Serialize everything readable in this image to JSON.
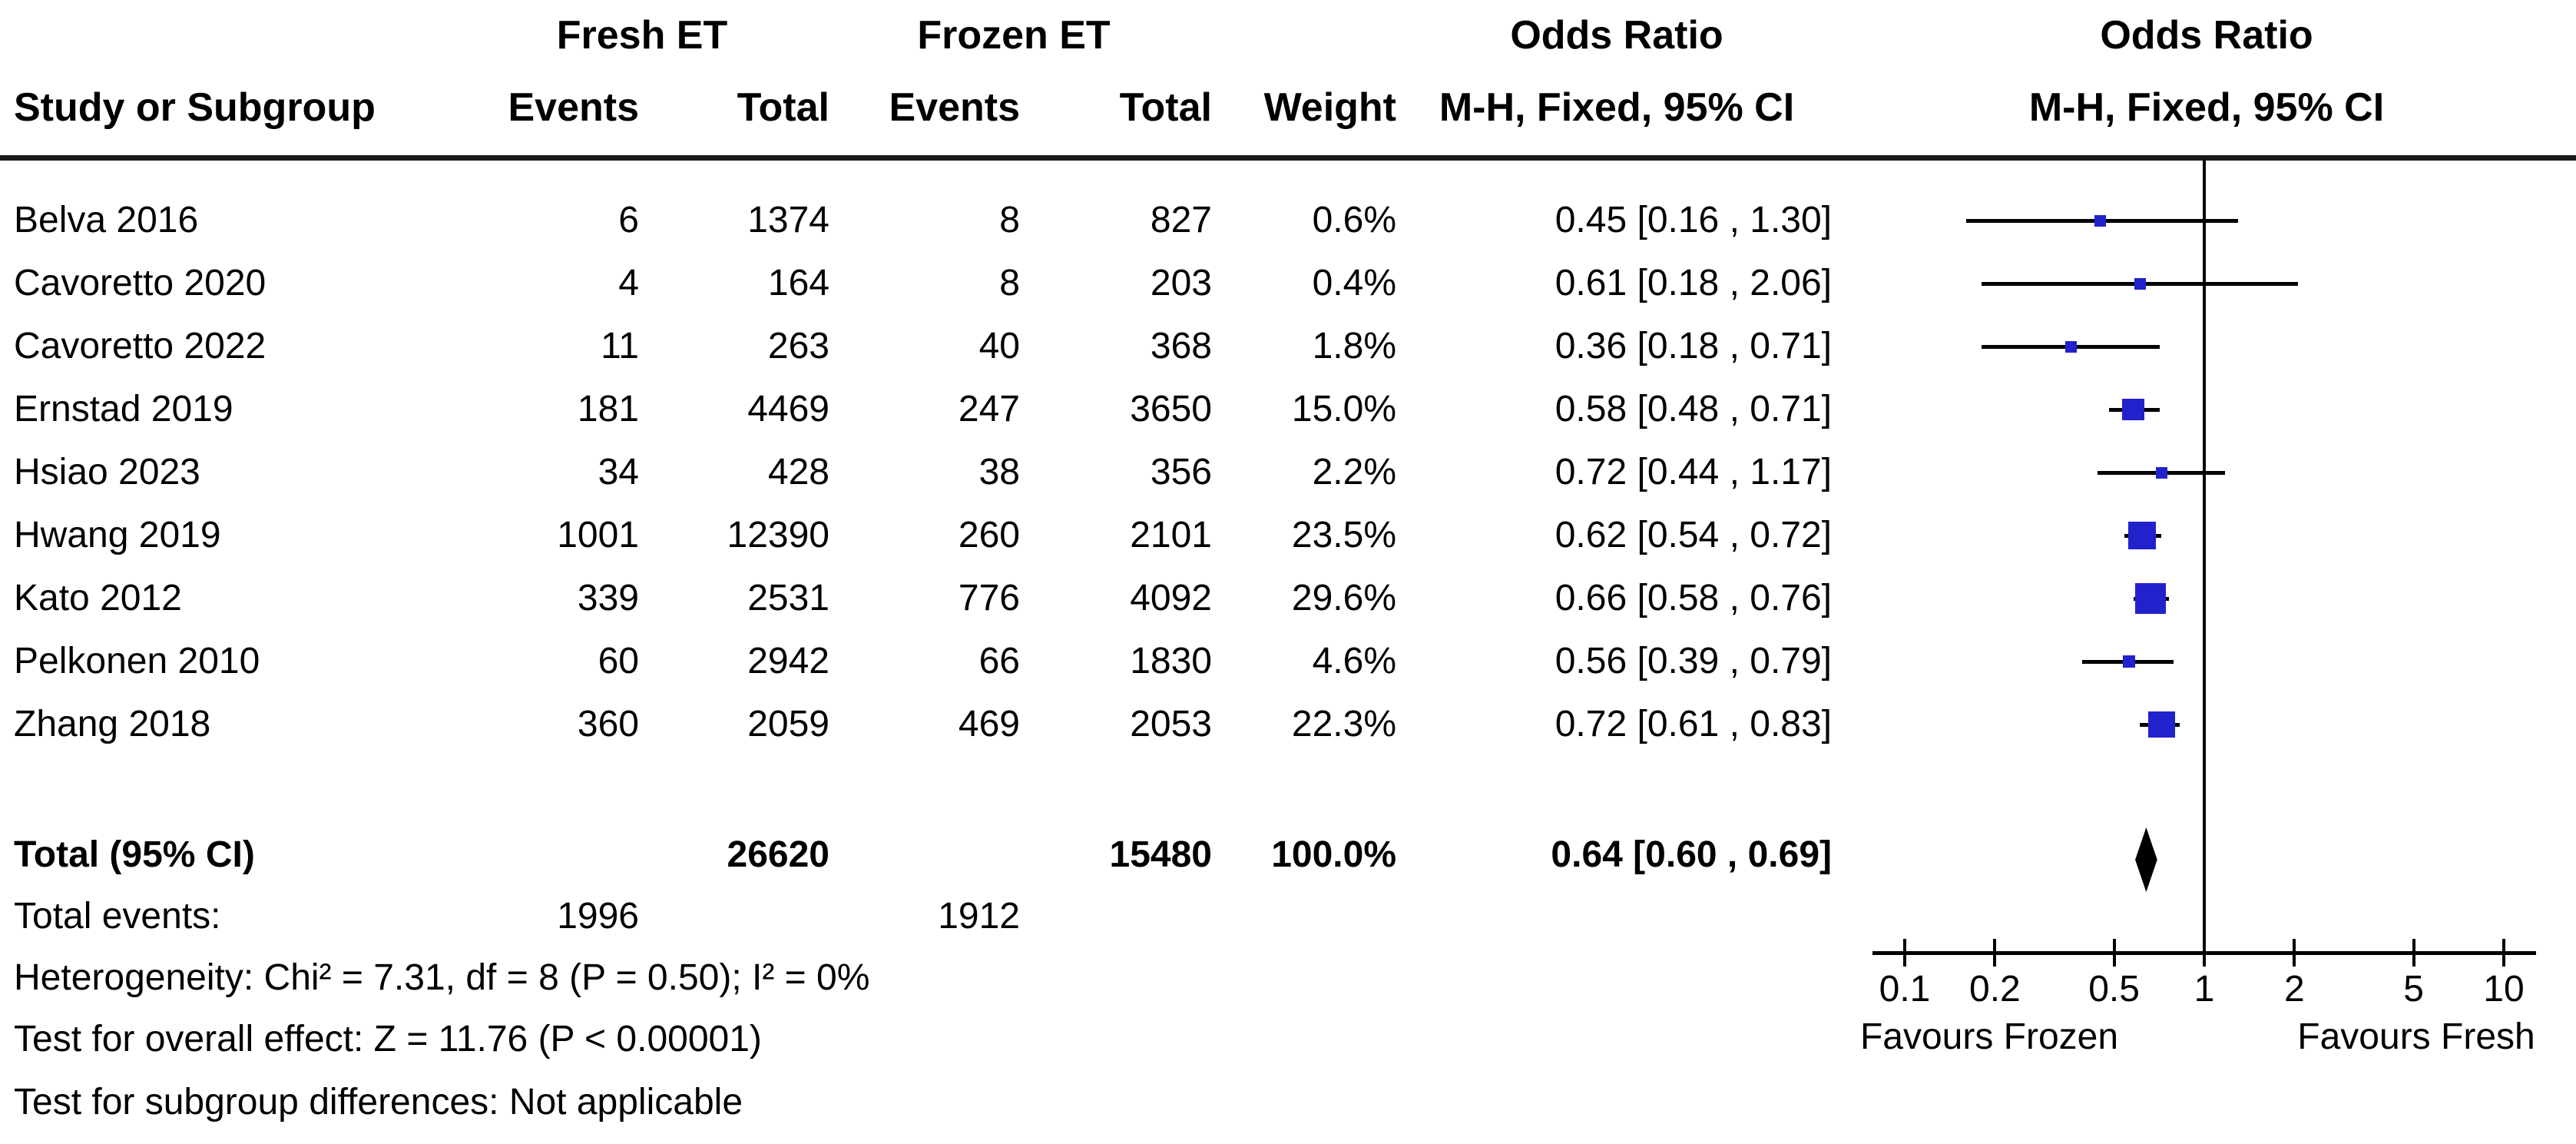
{
  "headers": {
    "group": {
      "fresh": "Fresh ET",
      "frozen": "Frozen ET",
      "or_stat": "Odds Ratio",
      "or_plot": "Odds Ratio"
    },
    "cols": {
      "study": "Study or Subgroup",
      "fresh_events": "Events",
      "fresh_total": "Total",
      "frozen_events": "Events",
      "frozen_total": "Total",
      "weight": "Weight",
      "mh_stat": "M-H, Fixed, 95% CI",
      "mh_plot": "M-H, Fixed, 95% CI"
    }
  },
  "labels": {
    "total_label": "Total (95% CI)",
    "total_events_label": "Total events:"
  },
  "footnotes": {
    "heterogeneity": "Heterogeneity: Chi² = 7.31, df = 8 (P = 0.50); I² = 0%",
    "overall_effect": "Test for overall effect: Z = 11.76 (P < 0.00001)",
    "subgroup_differences": "Test for subgroup differences: Not applicable"
  },
  "colors": {
    "marker_blue": "#2222CC",
    "ci_line": "#000000",
    "diamond": "#000000",
    "rule": "#1a1a1a"
  },
  "chart_data": {
    "type": "forest_plot",
    "effect_measure": "Odds Ratio, M-H, Fixed, 95% CI",
    "null_line": 1,
    "axis": {
      "scale": "log",
      "min": 0.1,
      "max": 10,
      "ticks": [
        0.1,
        0.2,
        0.5,
        1,
        2,
        5,
        10
      ],
      "tick_labels": [
        "0.1",
        "0.2",
        "0.5",
        "1",
        "2",
        "5",
        "10"
      ]
    },
    "favours": {
      "left": "Favours Frozen",
      "right": "Favours Fresh"
    },
    "studies": [
      {
        "name": "Belva 2016",
        "fresh_events": 6,
        "fresh_total": 1374,
        "frozen_events": 8,
        "frozen_total": 827,
        "weight_pct": 0.6,
        "weight_label": "0.6%",
        "or": 0.45,
        "ci_low": 0.16,
        "ci_high": 1.3,
        "or_label": "0.45 [0.16 , 1.30]"
      },
      {
        "name": "Cavoretto 2020",
        "fresh_events": 4,
        "fresh_total": 164,
        "frozen_events": 8,
        "frozen_total": 203,
        "weight_pct": 0.4,
        "weight_label": "0.4%",
        "or": 0.61,
        "ci_low": 0.18,
        "ci_high": 2.06,
        "or_label": "0.61 [0.18 , 2.06]"
      },
      {
        "name": "Cavoretto 2022",
        "fresh_events": 11,
        "fresh_total": 263,
        "frozen_events": 40,
        "frozen_total": 368,
        "weight_pct": 1.8,
        "weight_label": "1.8%",
        "or": 0.36,
        "ci_low": 0.18,
        "ci_high": 0.71,
        "or_label": "0.36 [0.18 , 0.71]"
      },
      {
        "name": "Ernstad 2019",
        "fresh_events": 181,
        "fresh_total": 4469,
        "frozen_events": 247,
        "frozen_total": 3650,
        "weight_pct": 15.0,
        "weight_label": "15.0%",
        "or": 0.58,
        "ci_low": 0.48,
        "ci_high": 0.71,
        "or_label": "0.58 [0.48 , 0.71]"
      },
      {
        "name": "Hsiao 2023",
        "fresh_events": 34,
        "fresh_total": 428,
        "frozen_events": 38,
        "frozen_total": 356,
        "weight_pct": 2.2,
        "weight_label": "2.2%",
        "or": 0.72,
        "ci_low": 0.44,
        "ci_high": 1.17,
        "or_label": "0.72 [0.44 , 1.17]"
      },
      {
        "name": "Hwang 2019",
        "fresh_events": 1001,
        "fresh_total": 12390,
        "frozen_events": 260,
        "frozen_total": 2101,
        "weight_pct": 23.5,
        "weight_label": "23.5%",
        "or": 0.62,
        "ci_low": 0.54,
        "ci_high": 0.72,
        "or_label": "0.62 [0.54 , 0.72]"
      },
      {
        "name": "Kato 2012",
        "fresh_events": 339,
        "fresh_total": 2531,
        "frozen_events": 776,
        "frozen_total": 4092,
        "weight_pct": 29.6,
        "weight_label": "29.6%",
        "or": 0.66,
        "ci_low": 0.58,
        "ci_high": 0.76,
        "or_label": "0.66 [0.58 , 0.76]"
      },
      {
        "name": "Pelkonen 2010",
        "fresh_events": 60,
        "fresh_total": 2942,
        "frozen_events": 66,
        "frozen_total": 1830,
        "weight_pct": 4.6,
        "weight_label": "4.6%",
        "or": 0.56,
        "ci_low": 0.39,
        "ci_high": 0.79,
        "or_label": "0.56 [0.39 , 0.79]"
      },
      {
        "name": "Zhang 2018",
        "fresh_events": 360,
        "fresh_total": 2059,
        "frozen_events": 469,
        "frozen_total": 2053,
        "weight_pct": 22.3,
        "weight_label": "22.3%",
        "or": 0.72,
        "ci_low": 0.61,
        "ci_high": 0.83,
        "or_label": "0.72 [0.61 , 0.83]"
      }
    ],
    "total": {
      "fresh_total": 26620,
      "frozen_total": 15480,
      "weight_label": "100.0%",
      "or": 0.64,
      "ci_low": 0.6,
      "ci_high": 0.69,
      "or_label": "0.64 [0.60 , 0.69]"
    },
    "total_events": {
      "fresh": 1996,
      "frozen": 1912
    }
  }
}
